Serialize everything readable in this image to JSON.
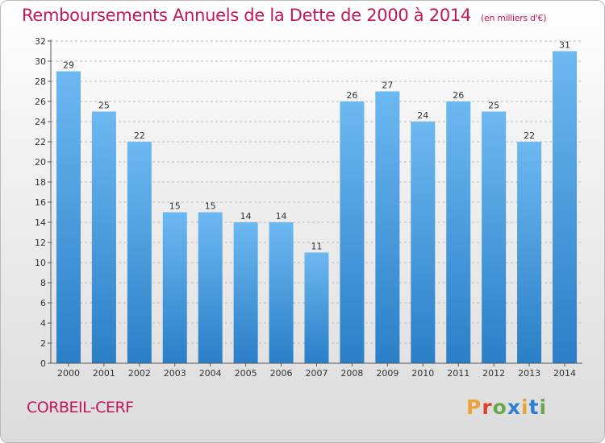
{
  "header": {
    "title": "Remboursements Annuels de la Dette de 2000 à 2014",
    "unit": "(en milliers d'€)"
  },
  "footer": {
    "place": "CORBEIL-CERF",
    "logo": "Proxiti",
    "logo_colors": [
      "#e8a33d",
      "#d9452b",
      "#6aa84f",
      "#2f7fd1",
      "#e8a33d",
      "#2f7fd1",
      "#6aa84f"
    ]
  },
  "colors": {
    "bar_top": "#6cb8f1",
    "bar_bottom": "#2b7fc7",
    "axis": "#555555",
    "grid": "#bdbdbd"
  },
  "chart_data": {
    "type": "bar",
    "categories": [
      "2000",
      "2001",
      "2002",
      "2003",
      "2004",
      "2005",
      "2006",
      "2007",
      "2008",
      "2009",
      "2010",
      "2011",
      "2012",
      "2013",
      "2014"
    ],
    "values": [
      29,
      25,
      22,
      15,
      15,
      14,
      14,
      11,
      26,
      27,
      24,
      26,
      25,
      22,
      31
    ],
    "ylim": [
      0,
      32
    ],
    "ytick_step": 2,
    "grid": "horizontal dashed",
    "data_labels": true
  }
}
